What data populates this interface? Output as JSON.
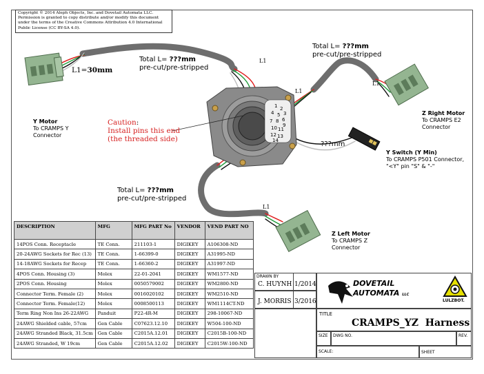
{
  "copyright": "Copyright © 2014 Aleph Objects, Inc. and Dovetail Automata LLC. Permission is granted to copy distribute and/or modify this document under the terms of the Creative Commons Attribution 4.0 International Public License (CC BY-SA 4.0).",
  "labels": {
    "l1_30_prefix": "L1=",
    "l1_30_value": "30mm",
    "total_left_prefix": "Total L= ",
    "total_left_value": "???mm",
    "total_left_note": "pre-cut/pre-stripped",
    "total_top_prefix": "Total L= ",
    "total_top_value": "???mm",
    "total_top_note": "pre-cut/pre-stripped",
    "total_bottom_prefix": "Total L= ",
    "total_bottom_value": "???mm",
    "total_bottom_note": "pre-cut/pre-stripped",
    "l1_a": "L1",
    "l1_b": "L1",
    "l1_c": "L1",
    "l1_d": "L1",
    "switch_len": "???mm"
  },
  "caution": {
    "title": "Caution",
    "colon": ":",
    "line1": "Install pins this end",
    "line2": "(the threaded side)"
  },
  "connectors": {
    "y_motor": {
      "title": "Y Motor",
      "line1": "To CRAMPS Y",
      "line2": "Connector"
    },
    "z_right": {
      "title": "Z Right Motor",
      "line1": "To CRAMPS E2",
      "line2": "Connector"
    },
    "y_switch": {
      "title": "Y Switch (Y Min)",
      "line1": "To CRAMPS P501 Connector,",
      "line2": "\"<Y\" pin \"S\" & \"-\""
    },
    "z_left": {
      "title": "Z Left Motor",
      "line1": "To CRAMPS Z",
      "line2": "Connector"
    }
  },
  "pins": [
    "1",
    "2",
    "3",
    "4",
    "5",
    "6",
    "7",
    "8",
    "9",
    "10",
    "11",
    "12",
    "13",
    "14"
  ],
  "bom": {
    "headers": [
      "DESCRIPTION",
      "MFG",
      "MFG PART No",
      "VENDOR",
      "VEND PART NO"
    ],
    "rows": [
      [
        "14POS Conn. Receptacle",
        "TE Conn.",
        "211103-1",
        "DIGIKEY",
        "A106308-ND"
      ],
      [
        "20-24AWG Sockets for Rec (13)",
        "TE Conn.",
        "1-66399-0",
        "DIGIKEY",
        "A31995-ND"
      ],
      [
        "14-18AWG Sockets for Recep",
        "TE Conn.",
        "1-66360-2",
        "DIGIKEY",
        "A31997-ND"
      ],
      [
        "4POS Conn. Housing (3)",
        "Molex",
        "22-01-2041",
        "DIGIKEY",
        "WM1577-ND"
      ],
      [
        "2POS Conn. Housing",
        "Molex",
        "0050579002",
        "DIGIKEY",
        "WM2800-ND"
      ],
      [
        "Connector Term. Female (2)",
        "Molex",
        "0016020102",
        "DIGIKEY",
        "WM2510-ND"
      ],
      [
        "Connector Term. Female(12)",
        "Molex",
        "0008500113",
        "DIGIKEY",
        "WM1114CT-ND"
      ],
      [
        "Term Ring Non Ins 26-22AWG",
        "Panduit",
        "P22-4R-M",
        "DIGIKEY",
        "298-10067-ND"
      ],
      [
        "24AWG Shielded cable, 57cm",
        "Gen Cable",
        "C07623.12.10",
        "DIGIKEY",
        "W504-100-ND"
      ],
      [
        "24AWG Stranded Black, 31.5cm",
        "Gen Cable",
        "C2015A.12.01",
        "DIGIKEY",
        "C2015B-100-ND"
      ],
      [
        "24AWG Stranded, W 19cm",
        "Gen Cable",
        "C2015A.12.02",
        "DIGIKEY",
        "C2015W-100-ND"
      ]
    ]
  },
  "titleblock": {
    "drawn_by_label": "DRAWN BY",
    "drawn_by": "C. HUYNH",
    "drawn_date": "1/2014",
    "checked_by": "J. MORRIS",
    "checked_date": "3/2016",
    "company_line1": "DOVETAIL",
    "company_line2": "AUTOMATA",
    "company_llc": "LLC",
    "lulzbot": "LULZBOT.",
    "title_label": "TITLE",
    "title": "CRAMPS_YZ  Harness",
    "size_label": "SIZE",
    "dwg_label": "DWG NO.",
    "rev_label": "REV.",
    "scale_label": "SCALE:",
    "sheet_label": "SHEET"
  },
  "colors": {
    "cable": "#6e6e6e",
    "connector": "#94b591",
    "caution": "#d61f1f",
    "wire_red": "#e01b1b",
    "wire_green": "#1f9a3a",
    "wire_black": "#111111",
    "wire_white": "#e8e8e8"
  }
}
